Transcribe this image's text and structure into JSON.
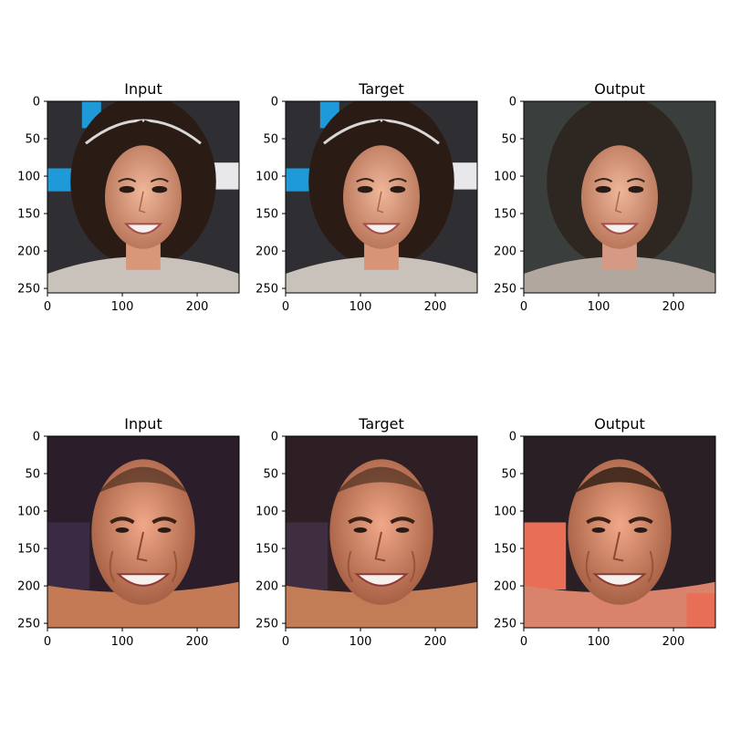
{
  "figure": {
    "background_color": "#ffffff",
    "axis_color": "#000000",
    "tick_values": [
      0,
      50,
      100,
      150,
      200,
      250
    ],
    "x_tick_values": [
      0,
      100,
      200
    ],
    "image_extent": [
      0,
      256
    ],
    "rows": [
      {
        "panels": [
          {
            "title": "Input",
            "image_description_icon": "woman-portrait-photo",
            "palette": {
              "bg": "#2f2f33",
              "accent": "#1e9ad8",
              "skin": "#d9977a",
              "hair": "#2a1b15",
              "clothes": "#c9c2ba"
            }
          },
          {
            "title": "Target",
            "image_description_icon": "woman-portrait-photo",
            "palette": {
              "bg": "#2f2f33",
              "accent": "#1e9ad8",
              "skin": "#d89477",
              "hair": "#2a1b15",
              "clothes": "#c9c2ba"
            }
          },
          {
            "title": "Output",
            "image_description_icon": "woman-portrait-photo-generated",
            "palette": {
              "bg": "#3a3f3d",
              "accent": "#3a3f3d",
              "skin": "#d69a84",
              "hair": "#2e2620",
              "clothes": "#b2a79e"
            }
          }
        ]
      },
      {
        "panels": [
          {
            "title": "Input",
            "image_description_icon": "man-portrait-photo",
            "palette": {
              "bg": "#2b1d2a",
              "accent": "#3b2a44",
              "skin": "#d08a6a",
              "hair": "#3a2417",
              "clothes": "#c47a55"
            }
          },
          {
            "title": "Target",
            "image_description_icon": "man-portrait-photo",
            "palette": {
              "bg": "#2e1f25",
              "accent": "#3f2d40",
              "skin": "#cf8967",
              "hair": "#3a2417",
              "clothes": "#c27c56"
            }
          },
          {
            "title": "Output",
            "image_description_icon": "man-portrait-photo-generated",
            "palette": {
              "bg": "#2a1f24",
              "accent": "#e86f56",
              "skin": "#d59480",
              "hair": "#3b2619",
              "clothes": "#d9836d"
            }
          }
        ]
      }
    ]
  }
}
